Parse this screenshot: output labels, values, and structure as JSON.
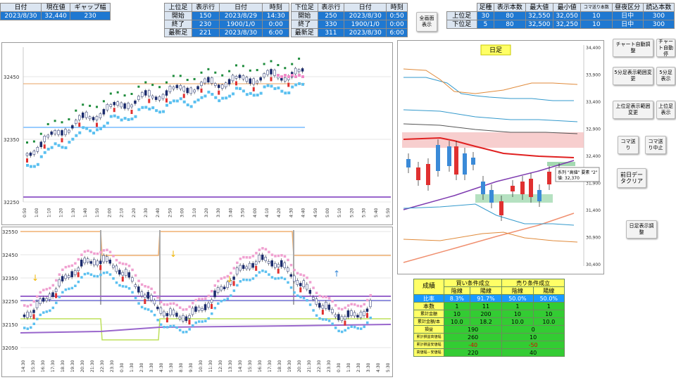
{
  "header": {
    "date_label": "日付",
    "current_label": "現在値",
    "gap_label": "ギャップ幅",
    "date_value": "2023/8/30",
    "current_value": "32,440",
    "gap_value": "230"
  },
  "upper_box": {
    "headers": [
      "上位足",
      "表示行",
      "日付",
      "時刻"
    ],
    "rows": [
      {
        "label": "開始",
        "row": "150",
        "date": "2023/8/29",
        "time": "14:30"
      },
      {
        "label": "終了",
        "row": "230",
        "date": "1900/1/0",
        "time": "0:00"
      },
      {
        "label": "最新足",
        "row": "221",
        "date": "2023/8/30",
        "time": "6:00"
      }
    ]
  },
  "lower_box": {
    "headers": [
      "下位足",
      "表示行",
      "日付",
      "時刻"
    ],
    "rows": [
      {
        "label": "開始",
        "row": "250",
        "date": "2023/8/30",
        "time": "0:50"
      },
      {
        "label": "終了",
        "row": "330",
        "date": "1900/1/0",
        "time": "0:00"
      },
      {
        "label": "最新足",
        "row": "311",
        "date": "2023/8/30",
        "time": "6:00"
      }
    ]
  },
  "fullscreen_button": "全画面\n表示",
  "settings_box": {
    "headers": [
      "足種",
      "表示本数",
      "最大値",
      "最小値",
      "コマ送り本数",
      "昼夜区分",
      "読込本数"
    ],
    "rows": [
      {
        "label": "上位足",
        "type": "30",
        "count": "80",
        "max": "32,550",
        "min": "32,050",
        "step": "10",
        "session": "日中",
        "load": "300"
      },
      {
        "label": "下位足",
        "type": "5",
        "count": "80",
        "max": "32,500",
        "min": "32,250",
        "step": "10",
        "session": "日中",
        "load": "300"
      }
    ]
  },
  "buttons": {
    "chart_auto": "チャート自動調整",
    "chart_stop": "チャート自動停",
    "five_min_range": "5分足表示範囲変更",
    "five_min_show": "5分足表示",
    "upper_range": "上位足表示範囲変更",
    "upper_show": "上位足表示",
    "koma": "コマ送り",
    "koma_stop": "コマ送り中止",
    "clear": "前日データクリア",
    "daily": "日足表示調整"
  },
  "chart_top": {
    "y_ticks": [
      "32450",
      "32350",
      "32250"
    ],
    "x_ticks": [
      "0:50",
      "1:00",
      "1:10",
      "1:20",
      "1:30",
      "1:40",
      "1:50",
      "2:00",
      "2:10",
      "2:20",
      "2:30",
      "2:40",
      "2:50",
      "3:00",
      "3:10",
      "3:20",
      "3:30",
      "3:40",
      "3:50",
      "4:00",
      "4:10",
      "4:20",
      "4:30",
      "4:40",
      "4:50",
      "5:00",
      "5:10",
      "5:20",
      "5:30",
      "5:40",
      "5:50"
    ]
  },
  "chart_bottom": {
    "y_ticks": [
      "32550",
      "32450",
      "32350",
      "32250",
      "32150",
      "32050"
    ],
    "x_ticks": [
      "14:30",
      "15:30",
      "16:30",
      "17:30",
      "18:30",
      "19:30",
      "20:30",
      "21:30",
      "22:30",
      "23:30",
      "0:30",
      "1:30",
      "2:30",
      "3:30",
      "4:30",
      "5:30",
      "8:30",
      "9:30",
      "10:30",
      "11:30",
      "12:30",
      "13:30",
      "14:30",
      "15:30",
      "16:30",
      "17:30",
      "18:30",
      "19:30",
      "20:30",
      "21:30",
      "22:30",
      "23:30",
      "0:30",
      "1:30",
      "2:30",
      "3:30",
      "4:30",
      "5:30"
    ]
  },
  "chart_daily": {
    "title": "日足",
    "y_ticks": [
      "34,400",
      "33,900",
      "33,400",
      "32,900",
      "32,400",
      "31,900",
      "31,400",
      "30,900",
      "30,400"
    ],
    "tooltip_line1": "系列 \"高値\" 要素 \"2\"",
    "tooltip_line2": "値: 32,370"
  },
  "stats": {
    "title": "成績",
    "buy_header": "買い条件成立",
    "sell_header": "売り条件成立",
    "sub_headers": [
      "陰線",
      "陽線",
      "陰線",
      "陽線"
    ],
    "rows": [
      {
        "label": "比率",
        "values": [
          "8.3%",
          "91.7%",
          "50.0%",
          "50.0%"
        ]
      },
      {
        "label": "本数",
        "values": [
          "1",
          "11",
          "1",
          "1"
        ]
      },
      {
        "label": "累計金額",
        "values": [
          "10",
          "200",
          "10",
          "10"
        ]
      },
      {
        "label": "累計金額/本",
        "values": [
          "10.0",
          "18.2",
          "10.0",
          "10.0"
        ]
      }
    ],
    "merged_rows": [
      {
        "label": "損益",
        "buy": "190",
        "sell": "0"
      },
      {
        "label": "累計損益高値幅",
        "buy": "260",
        "sell": "10"
      },
      {
        "label": "累計損益安値幅",
        "buy": "-40",
        "sell": "-50"
      },
      {
        "label": "高値幅－安値幅",
        "buy": "220",
        "sell": "40"
      }
    ]
  },
  "colors": {
    "header_blue": "#1f78d1",
    "stats_yellow": "#ffff66",
    "stats_green": "#33cc33",
    "stats_blue": "#1a9aff"
  }
}
